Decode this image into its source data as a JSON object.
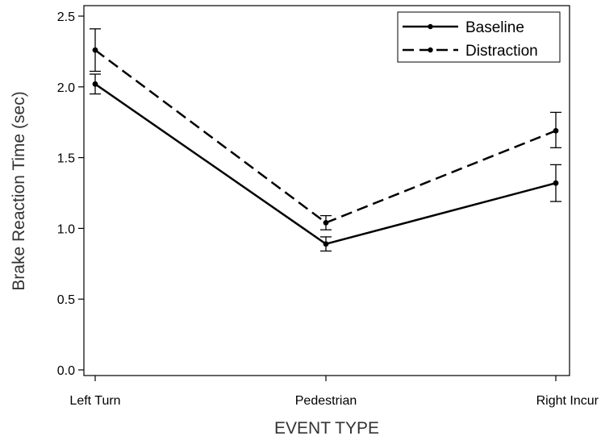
{
  "chart_data": {
    "type": "line",
    "title": "",
    "xlabel": "EVENT TYPE",
    "ylabel": "Brake Reaction Time (sec)",
    "categories": [
      "Left Turn",
      "Pedestrian",
      "Right Incur"
    ],
    "ylim": [
      0.0,
      2.5
    ],
    "yticks": [
      "0.0",
      "0.5",
      "1.0",
      "1.5",
      "2.0",
      "2.5"
    ],
    "grid": false,
    "legend_position": "top-right",
    "series": [
      {
        "name": "Baseline",
        "line_style": "solid",
        "values": [
          2.02,
          0.89,
          1.32
        ],
        "error_low": [
          1.95,
          0.84,
          1.19
        ],
        "error_high": [
          2.09,
          0.94,
          1.45
        ]
      },
      {
        "name": "Distraction",
        "line_style": "dashed",
        "values": [
          2.26,
          1.04,
          1.69
        ],
        "error_low": [
          2.11,
          0.99,
          1.57
        ],
        "error_high": [
          2.41,
          1.09,
          1.82
        ]
      }
    ],
    "colors": {
      "line": "#000000",
      "axis": "#000000"
    }
  }
}
